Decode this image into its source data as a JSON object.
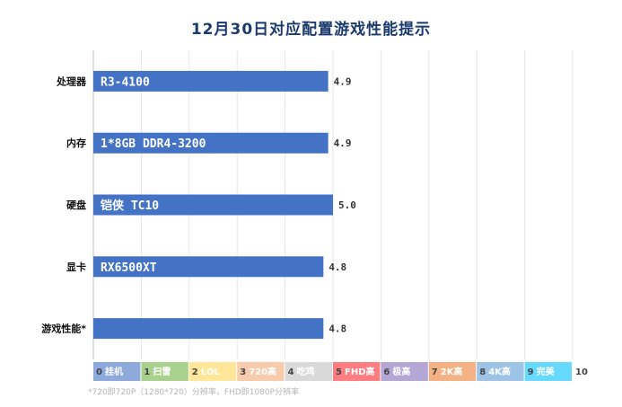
{
  "chart_data": {
    "type": "bar",
    "orientation": "horizontal",
    "title": "12月30日对应配置游戏性能提示",
    "categories": [
      "处理器",
      "内存",
      "硬盘",
      "显卡",
      "游戏性能*"
    ],
    "bar_labels": [
      "R3-4100",
      "1*8GB DDR4-3200",
      "铠侠 TC10",
      "RX6500XT",
      ""
    ],
    "values": [
      4.9,
      4.9,
      5.0,
      4.8,
      4.8
    ],
    "value_labels": [
      "4.9",
      "4.9",
      "5.0",
      "4.8",
      "4.8"
    ],
    "xlim": [
      0,
      10
    ],
    "grid": true,
    "bar_color": "#4472c4",
    "scale_legend": [
      {
        "level": "0",
        "label": "挂机",
        "color": "#8ea9db"
      },
      {
        "level": "1",
        "label": "扫雷",
        "color": "#a9d18e"
      },
      {
        "level": "2",
        "label": "LOL",
        "color": "#ffe699"
      },
      {
        "level": "3",
        "label": "720高",
        "color": "#f8cbad"
      },
      {
        "level": "4",
        "label": "吃鸡",
        "color": "#d9d9d9"
      },
      {
        "level": "5",
        "label": "FHD高",
        "color": "#ff7c80"
      },
      {
        "level": "6",
        "label": "极高",
        "color": "#b4a7d6"
      },
      {
        "level": "7",
        "label": "2K高",
        "color": "#f4b183"
      },
      {
        "level": "8",
        "label": "4K高",
        "color": "#9dc3e6"
      },
      {
        "level": "9",
        "label": "完美",
        "color": "#66d9ff"
      },
      {
        "level": "10",
        "label": "",
        "color": "#ffffff"
      }
    ],
    "footnote": "*720即720P（1280*720）分辨率，FHD即1080P分辨率"
  }
}
